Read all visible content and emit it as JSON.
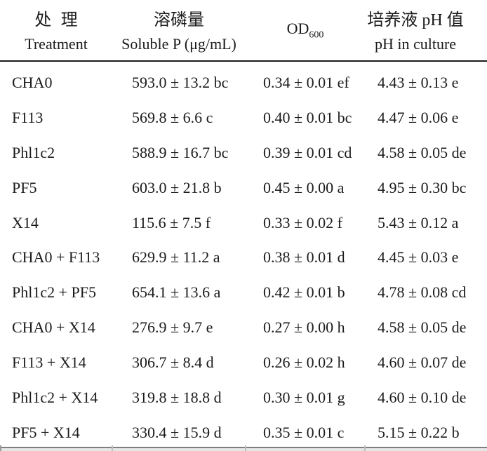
{
  "page": {
    "background": "#ffffff",
    "text_color": "#1b1b1b",
    "header_rule_color": "#1c1c1c",
    "bottom_rule_color": "#7f7f7f"
  },
  "table": {
    "header": {
      "treatment": {
        "zh": "处理",
        "en": "Treatment"
      },
      "soluble_p": {
        "zh": "溶磷量",
        "en": "Soluble P (μg/mL)"
      },
      "od600": {
        "label": "OD",
        "subscript": "600"
      },
      "ph": {
        "zh": "培养液 pH 值",
        "en": "pH in culture"
      }
    },
    "rows": [
      {
        "treatment": "CHA0",
        "soluble_p": "593.0 ± 13.2 bc",
        "od600": "0.34 ± 0.01 ef",
        "ph": "4.43 ± 0.13 e"
      },
      {
        "treatment": "F113",
        "soluble_p": "569.8 ± 6.6 c",
        "od600": "0.40 ± 0.01 bc",
        "ph": "4.47 ± 0.06 e"
      },
      {
        "treatment": "Phl1c2",
        "soluble_p": "588.9 ± 16.7 bc",
        "od600": "0.39 ± 0.01 cd",
        "ph": "4.58 ± 0.05 de"
      },
      {
        "treatment": "PF5",
        "soluble_p": "603.0 ± 21.8 b",
        "od600": "0.45 ± 0.00 a",
        "ph": "4.95 ± 0.30 bc"
      },
      {
        "treatment": "X14",
        "soluble_p": "115.6 ± 7.5 f",
        "od600": "0.33 ± 0.02 f",
        "ph": "5.43 ± 0.12 a"
      },
      {
        "treatment": "CHA0 + F113",
        "soluble_p": "629.9 ± 11.2 a",
        "od600": "0.38 ± 0.01 d",
        "ph": "4.45 ± 0.03 e"
      },
      {
        "treatment": "Phl1c2 + PF5",
        "soluble_p": "654.1 ± 13.6 a",
        "od600": "0.42 ± 0.01 b",
        "ph": "4.78 ± 0.08 cd"
      },
      {
        "treatment": "CHA0 + X14",
        "soluble_p": "276.9 ± 9.7 e",
        "od600": "0.27 ± 0.00 h",
        "ph": "4.58 ± 0.05 de"
      },
      {
        "treatment": "F113 + X14",
        "soluble_p": "306.7 ± 8.4 d",
        "od600": "0.26 ± 0.02 h",
        "ph": "4.60 ± 0.07 de"
      },
      {
        "treatment": "Phl1c2 + X14",
        "soluble_p": "319.8 ± 18.8 d",
        "od600": "0.30 ± 0.01 g",
        "ph": "4.60 ± 0.10 de"
      },
      {
        "treatment": "PF5 + X14",
        "soluble_p": "330.4 ± 15.9 d",
        "od600": "0.35 ± 0.01 c",
        "ph": "5.15 ± 0.22 b"
      }
    ]
  }
}
